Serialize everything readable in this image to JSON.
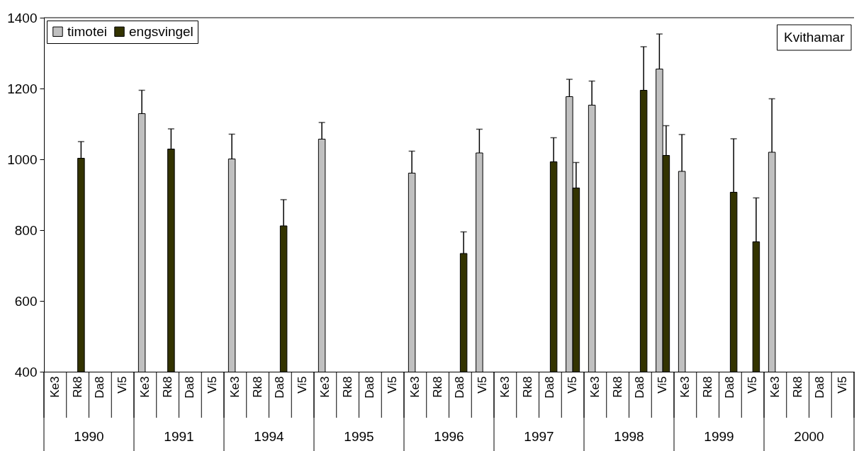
{
  "chart_data": {
    "type": "bar",
    "categories": [
      "Ke3",
      "Rk8",
      "Da8",
      "Vi5",
      "Ke3",
      "Rk8",
      "Da8",
      "Vi5",
      "Ke3",
      "Rk8",
      "Da8",
      "Vi5",
      "Ke3",
      "Rk8",
      "Da8",
      "Vi5",
      "Ke3",
      "Rk8",
      "Da8",
      "Vi5",
      "Ke3",
      "Rk8",
      "Da8",
      "Vi5",
      "Ke3",
      "Rk8",
      "Da8",
      "Vi5",
      "Ke3",
      "Rk8",
      "Da8",
      "Vi5",
      "Ke3",
      "Rk8",
      "Da8",
      "Vi5"
    ],
    "series": [
      {
        "name": "timotei",
        "color": "#c0c0c0",
        "values": [
          null,
          null,
          null,
          null,
          1129,
          null,
          null,
          null,
          1001,
          null,
          null,
          null,
          1057,
          null,
          null,
          null,
          961,
          null,
          null,
          1018,
          null,
          null,
          null,
          1177,
          1153,
          null,
          null,
          1255,
          966,
          null,
          null,
          null,
          1020,
          null,
          null,
          null
        ],
        "errors": [
          null,
          null,
          null,
          null,
          66,
          null,
          null,
          null,
          70,
          null,
          null,
          null,
          47,
          null,
          null,
          null,
          62,
          null,
          null,
          67,
          null,
          null,
          null,
          49,
          68,
          null,
          null,
          99,
          104,
          null,
          null,
          null,
          151,
          null,
          null,
          null
        ]
      },
      {
        "name": "engsvingel",
        "color": "#333300",
        "values": [
          null,
          1003,
          null,
          null,
          null,
          1029,
          null,
          null,
          null,
          null,
          812,
          null,
          null,
          null,
          null,
          null,
          null,
          null,
          734,
          null,
          null,
          null,
          993,
          919,
          null,
          null,
          1195,
          1011,
          null,
          null,
          907,
          767,
          null,
          null,
          null,
          null
        ],
        "errors": [
          null,
          47,
          null,
          null,
          null,
          57,
          null,
          null,
          null,
          null,
          74,
          null,
          null,
          null,
          null,
          null,
          null,
          null,
          61,
          null,
          null,
          null,
          68,
          72,
          null,
          null,
          123,
          84,
          null,
          null,
          151,
          124,
          null,
          null,
          null,
          null
        ]
      }
    ],
    "ylim": [
      400,
      1400
    ],
    "yticks": [
      400,
      600,
      800,
      1000,
      1200,
      1400
    ],
    "grid": false,
    "legend": "top left",
    "annotations": [
      "Kvithamar",
      "1990",
      "1991",
      "1994",
      "1995",
      "1996",
      "1997",
      "1998",
      "1999",
      "2000"
    ]
  }
}
